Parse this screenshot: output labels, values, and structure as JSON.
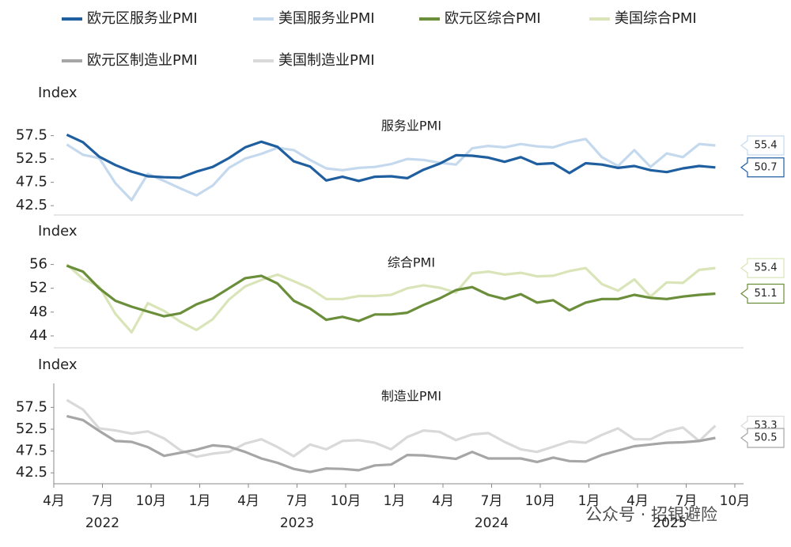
{
  "chart_data": [
    {
      "type": "line",
      "title": "服务业PMI",
      "y_label": "Index",
      "ylim": [
        40.5,
        61.5
      ],
      "yticks": [
        42.5,
        47.5,
        52.5,
        57.5
      ],
      "series": [
        {
          "name": "欧元区服务业PMI",
          "color": "#1f5fa0",
          "values": [
            57.7,
            56.1,
            53.0,
            51.2,
            49.8,
            48.8,
            48.6,
            48.5,
            49.8,
            50.8,
            52.7,
            55.0,
            56.2,
            55.1,
            52.0,
            50.9,
            47.9,
            48.7,
            47.8,
            48.7,
            48.8,
            48.4,
            50.2,
            51.5,
            53.3,
            53.2,
            52.8,
            51.9,
            52.9,
            51.4,
            51.6,
            49.5,
            51.6,
            51.3,
            50.6,
            51.0,
            50.1,
            49.7,
            50.5,
            51.0,
            50.7
          ]
        },
        {
          "name": "美国服务业PMI",
          "color": "#c5d9ee",
          "values": [
            55.6,
            53.4,
            52.7,
            47.3,
            43.7,
            49.3,
            47.8,
            46.2,
            44.7,
            46.8,
            50.6,
            52.6,
            53.6,
            54.9,
            54.4,
            52.3,
            50.5,
            50.1,
            50.6,
            50.8,
            51.4,
            52.5,
            52.3,
            51.7,
            51.3,
            54.8,
            55.3,
            55.0,
            55.7,
            55.2,
            55.0,
            56.1,
            56.8,
            52.9,
            51.0,
            54.4,
            50.8,
            53.7,
            52.9,
            55.7,
            55.4
          ]
        }
      ]
    },
    {
      "type": "line",
      "title": "综合PMI",
      "y_label": "Index",
      "ylim": [
        42,
        59
      ],
      "yticks": [
        44,
        48,
        52,
        56
      ],
      "series": [
        {
          "name": "欧元区综合PMI",
          "color": "#6b8e3a",
          "values": [
            55.8,
            54.8,
            52.0,
            49.9,
            48.9,
            48.1,
            47.3,
            47.8,
            49.3,
            50.3,
            52.0,
            53.7,
            54.1,
            52.8,
            49.9,
            48.6,
            46.7,
            47.2,
            46.5,
            47.6,
            47.6,
            47.9,
            49.2,
            50.3,
            51.7,
            52.2,
            50.9,
            50.2,
            51.0,
            49.6,
            50.0,
            48.3,
            49.6,
            50.2,
            50.2,
            50.9,
            50.4,
            50.2,
            50.6,
            50.9,
            51.1
          ]
        },
        {
          "name": "美国综合PMI",
          "color": "#d9e5b8",
          "values": [
            56.0,
            53.6,
            52.3,
            47.7,
            44.6,
            49.5,
            48.2,
            46.4,
            45.0,
            46.8,
            50.1,
            52.3,
            53.4,
            54.3,
            53.2,
            52.0,
            50.2,
            50.2,
            50.7,
            50.7,
            50.9,
            52.0,
            52.5,
            52.1,
            51.3,
            54.5,
            54.8,
            54.3,
            54.6,
            54.0,
            54.1,
            54.9,
            55.4,
            52.7,
            51.6,
            53.5,
            50.6,
            53.0,
            52.9,
            55.1,
            55.4
          ]
        }
      ]
    },
    {
      "type": "line",
      "title": "制造业PMI",
      "y_label": "Index",
      "ylim": [
        40,
        63
      ],
      "yticks": [
        42.5,
        47.5,
        52.5,
        57.5
      ],
      "categories": [
        "4月",
        null,
        null,
        "7月",
        null,
        null,
        "10月",
        null,
        null,
        "1月",
        null,
        null,
        "4月",
        null,
        null,
        "7月",
        null,
        null,
        "10月",
        null,
        null,
        "1月",
        null,
        null,
        "4月",
        null,
        null,
        "7月",
        null,
        null,
        "10月",
        null,
        null,
        "1月",
        null,
        null,
        "4月",
        null,
        null,
        "7月",
        null,
        null,
        "10月"
      ],
      "years": [
        "2022",
        "2023",
        "2024",
        "2025"
      ],
      "watermark": "公众号 · 招银避险",
      "series": [
        {
          "name": "欧元区制造业PMI",
          "color": "#a6a6a6",
          "values": [
            55.5,
            54.6,
            52.1,
            49.8,
            49.6,
            48.4,
            46.4,
            47.1,
            47.8,
            48.8,
            48.5,
            47.3,
            45.8,
            44.8,
            43.4,
            42.7,
            43.5,
            43.4,
            43.1,
            44.2,
            44.4,
            46.6,
            46.5,
            46.1,
            45.7,
            47.3,
            45.8,
            45.8,
            45.8,
            45.0,
            46.0,
            45.2,
            45.1,
            46.6,
            47.6,
            48.6,
            49.0,
            49.4,
            49.5,
            49.8,
            50.5,
            null,
            null
          ]
        },
        {
          "name": "美国制造业PMI",
          "color": "#d9d9d9",
          "values": [
            59.2,
            57.0,
            52.7,
            52.2,
            51.5,
            52.0,
            50.4,
            47.7,
            46.2,
            46.9,
            47.3,
            49.2,
            50.2,
            48.4,
            46.3,
            49.0,
            47.9,
            49.8,
            50.0,
            49.4,
            47.9,
            50.7,
            52.2,
            51.9,
            50.0,
            51.3,
            51.6,
            49.6,
            47.9,
            47.3,
            48.5,
            49.7,
            49.4,
            51.2,
            52.7,
            50.2,
            50.2,
            52.0,
            52.9,
            49.8,
            53.3,
            null,
            null
          ]
        }
      ]
    }
  ]
}
